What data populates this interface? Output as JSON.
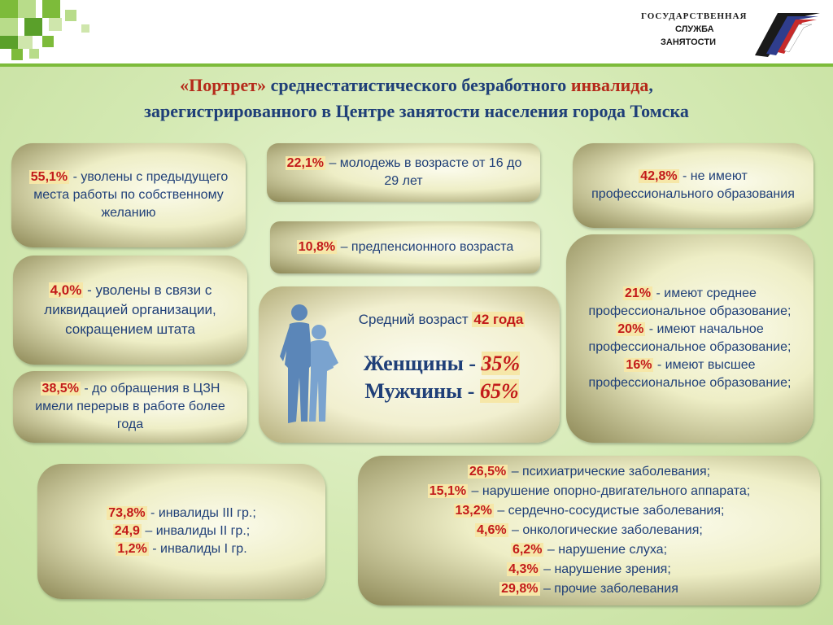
{
  "header": {
    "logo": {
      "line1": "ГОСУДАРСТВЕННАЯ",
      "line2": "СЛУЖБА",
      "line3": "ЗАНЯТОСТИ",
      "icon": "flag-stripes-icon"
    }
  },
  "title": {
    "part1": "«Портрет»",
    "part2": " среднестатистического безработного ",
    "part3": "инвалида",
    "part4": ",",
    "line2": "зарегистрированного в Центре занятости населения города Томска"
  },
  "boxes": {
    "left1": {
      "pct": "55,1%",
      "text": " - уволены с предыдущего места работы по собственному желанию"
    },
    "left2": {
      "pct": "4,0%",
      "text": " -  уволены в связи с ликвидацией организации, сокращением штата"
    },
    "left3": {
      "pct": "38,5%",
      "text": " - до обращения в ЦЗН имели перерыв в работе более года"
    },
    "mid1": {
      "pct": "22,1%",
      "text": " – молодежь в возрасте от 16 до 29 лет"
    },
    "mid2": {
      "pct": "10,8%",
      "text": " – предпенсионного возраста"
    },
    "center": {
      "age_label": "Средний возраст ",
      "age_value": "42 года",
      "women_label": "Женщины - ",
      "women_value": "35%",
      "men_label": "Мужчины - ",
      "men_value": "65%",
      "icon": "people-silhouette-icon"
    },
    "right1": {
      "pct": "42,8%",
      "text": " - не имеют профессионального образования"
    },
    "right2": {
      "items": [
        {
          "pct": "21%",
          "text": " - имеют среднее профессиональное образование;"
        },
        {
          "pct": "20%",
          "text": " - имеют начальное профессиональное образование;"
        },
        {
          "pct": "16%",
          "text": " - имеют  высшее профессиональное образование;"
        }
      ]
    },
    "bottom_left": {
      "items": [
        {
          "pct": "73,8%",
          "text": " - инвалиды III гр.;"
        },
        {
          "pct": "24,9",
          "text": " – инвалиды II гр.;"
        },
        {
          "pct": "1,2%",
          "text": " - инвалиды I гр."
        }
      ]
    },
    "bottom_right": {
      "items": [
        {
          "pct": "26,5%",
          "text": " – психиатрические заболевания;"
        },
        {
          "pct": "15,1%",
          "text": " – нарушение опорно-двигательного аппарата;"
        },
        {
          "pct": "13,2%",
          "text": " – сердечно-сосудистые заболевания;"
        },
        {
          "pct": "4,6%",
          "text": " – онкологические заболевания;"
        },
        {
          "pct": "6,2%",
          "text": " – нарушение слуха;"
        },
        {
          "pct": "4,3%",
          "text": " – нарушение зрения;"
        },
        {
          "pct": "29,8%",
          "text": " – прочие заболевания"
        }
      ]
    }
  },
  "colors": {
    "title_blue": "#1f3f78",
    "accent_red": "#c21a1a",
    "green": "#7dbb3a",
    "figure_blue": "#5b86b8"
  }
}
